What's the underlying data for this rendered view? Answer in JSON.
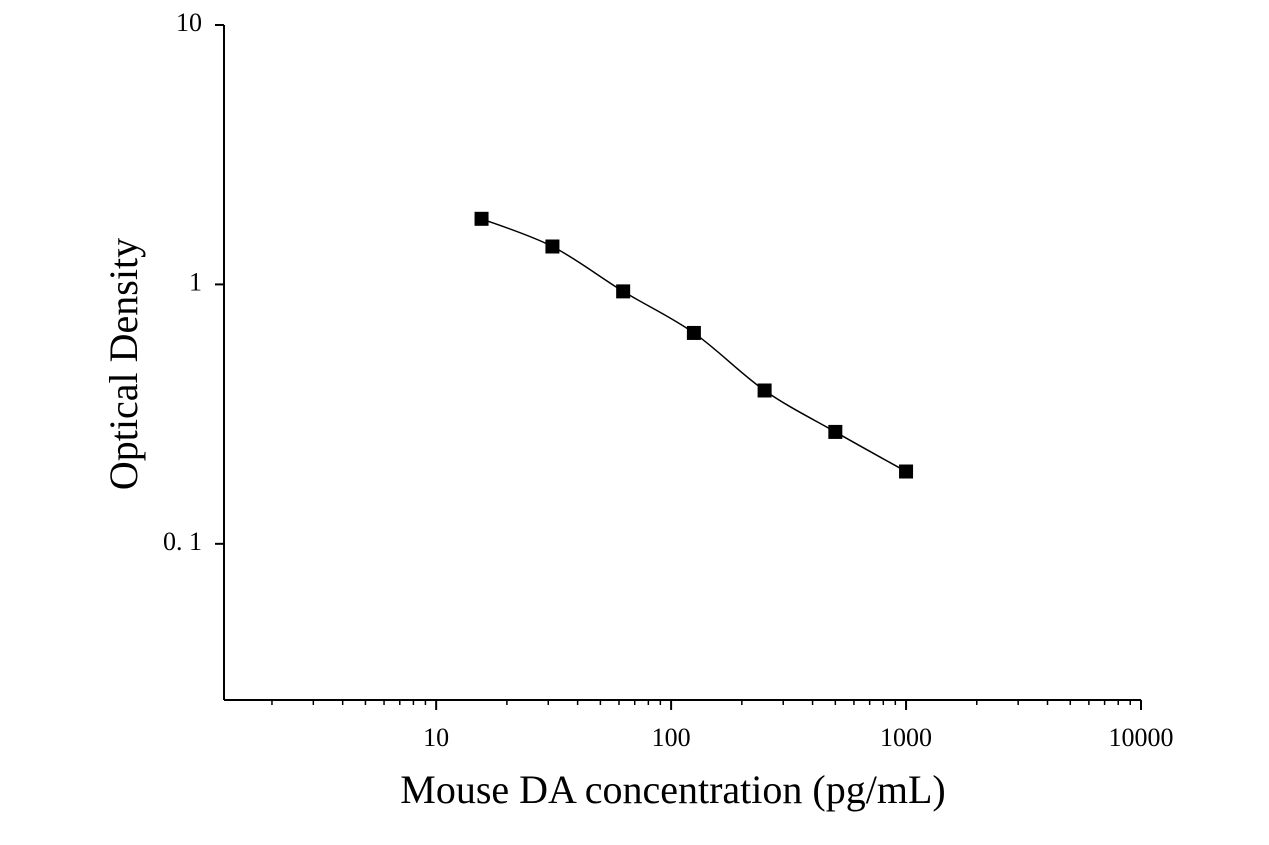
{
  "chart_data": {
    "type": "scatter",
    "x_label": "Mouse DA concentration (pg/mL)",
    "y_label": "Optical Density",
    "x": [
      15.6,
      31.25,
      62.5,
      125,
      250,
      500,
      1000
    ],
    "series": [
      {
        "color": "#000000",
        "values": [
          1.79,
          1.4,
          0.94,
          0.65,
          0.39,
          0.27,
          0.19
        ]
      }
    ],
    "xlim": [
      1.25,
      10000
    ],
    "ylim": [
      0.025,
      10
    ],
    "xticks": [
      10,
      100,
      1000,
      10000
    ],
    "yticks": [
      10,
      1,
      {
        "value": 0.1,
        "label": "0. 1"
      }
    ],
    "xscale": "log",
    "yscale": "log",
    "fit_line": true
  }
}
